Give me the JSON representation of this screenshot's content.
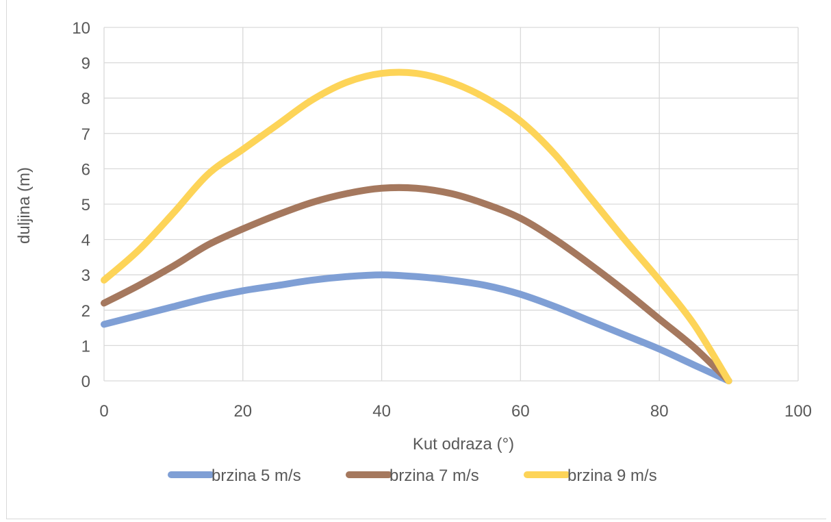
{
  "chart_data": {
    "type": "line",
    "title": "",
    "xlabel": "Kut odraza (°)",
    "ylabel": "duljina (m)",
    "xlim": [
      0,
      100
    ],
    "ylim": [
      0,
      10
    ],
    "x_ticks": [
      "0",
      "20",
      "40",
      "60",
      "80",
      "100"
    ],
    "y_ticks": [
      "0",
      "1",
      "2",
      "3",
      "4",
      "5",
      "6",
      "7",
      "8",
      "9",
      "10"
    ],
    "grid": true,
    "legend_position": "bottom",
    "series": [
      {
        "name": "brzina 5 m/s",
        "color": "#7f9fd5",
        "x": [
          0,
          5,
          10,
          15,
          20,
          25,
          30,
          35,
          40,
          45,
          50,
          55,
          60,
          65,
          70,
          75,
          80,
          85,
          90
        ],
        "y": [
          1.6,
          1.85,
          2.1,
          2.35,
          2.55,
          2.7,
          2.85,
          2.95,
          3.0,
          2.95,
          2.85,
          2.7,
          2.45,
          2.1,
          1.7,
          1.3,
          0.9,
          0.45,
          0.0
        ]
      },
      {
        "name": "brzina 7 m/s",
        "color": "#a5785e",
        "x": [
          0,
          5,
          10,
          15,
          20,
          25,
          30,
          35,
          40,
          45,
          50,
          55,
          60,
          65,
          70,
          75,
          80,
          85,
          90
        ],
        "y": [
          2.2,
          2.7,
          3.25,
          3.85,
          4.3,
          4.7,
          5.05,
          5.3,
          5.45,
          5.45,
          5.3,
          5.0,
          4.6,
          4.0,
          3.3,
          2.55,
          1.75,
          0.95,
          0.0
        ]
      },
      {
        "name": "brzina 9 m/s",
        "color": "#fdd458",
        "x": [
          0,
          5,
          10,
          15,
          20,
          25,
          30,
          35,
          40,
          45,
          50,
          55,
          60,
          65,
          70,
          75,
          80,
          85,
          90
        ],
        "y": [
          2.85,
          3.7,
          4.75,
          5.85,
          6.55,
          7.25,
          7.95,
          8.45,
          8.7,
          8.7,
          8.45,
          8.0,
          7.35,
          6.4,
          5.2,
          4.0,
          2.85,
          1.6,
          0.0
        ]
      }
    ]
  }
}
